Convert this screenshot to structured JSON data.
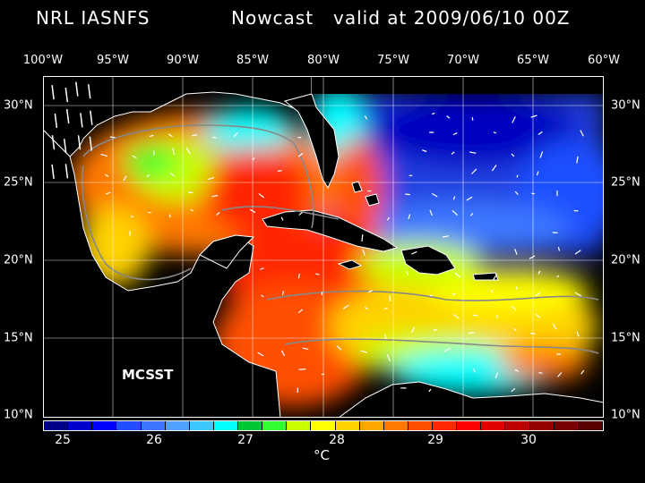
{
  "header": {
    "source": "NRL IASNFS",
    "product": "Nowcast",
    "valid": "valid at 2009/06/10 00Z"
  },
  "map": {
    "lon_labels": [
      "100°W",
      "95°W",
      "90°W",
      "85°W",
      "80°W",
      "75°W",
      "70°W",
      "65°W",
      "60°W"
    ],
    "lat_labels": [
      "30°N",
      "25°N",
      "20°N",
      "15°N",
      "10°N"
    ],
    "data_label": "MCSST",
    "land_color": "#000000",
    "coast_color": "#ffffff",
    "bathymetry_contour_color": "#888888",
    "current_vector_color": "#ffffff"
  },
  "colorbar": {
    "tick_labels": [
      "25",
      "26",
      "27",
      "28",
      "29",
      "30"
    ],
    "unit": "°C",
    "colors": [
      "#00008b",
      "#0000cd",
      "#0000ff",
      "#1e50ff",
      "#3c78ff",
      "#50a0ff",
      "#3cc8ff",
      "#00ffff",
      "#00c832",
      "#32ff32",
      "#c8ff00",
      "#ffff00",
      "#ffd200",
      "#ffa500",
      "#ff7800",
      "#ff5000",
      "#ff2800",
      "#ff0000",
      "#e10000",
      "#be0000",
      "#960000",
      "#780000",
      "#5a0000"
    ]
  }
}
